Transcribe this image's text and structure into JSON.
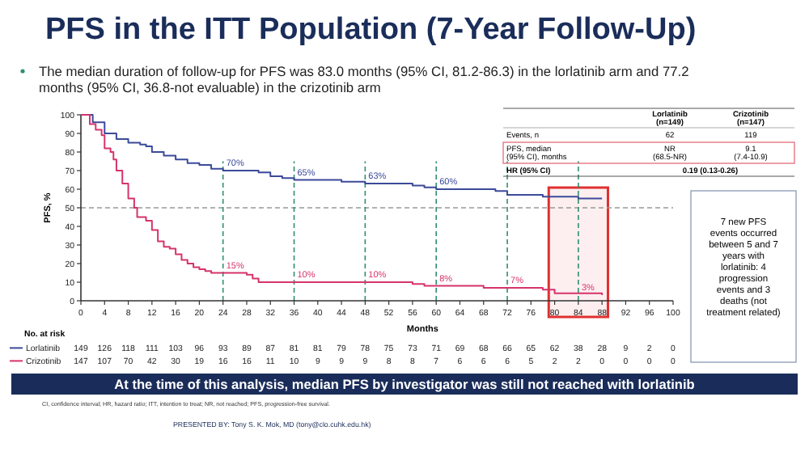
{
  "chart_data": [
    {
      "type": "step",
      "title": "PFS in the ITT Population (7-Year Follow-Up)",
      "subtitle": "The median duration of follow-up for PFS was 83.0 months (95% CI, 81.2-86.3) in the lorlatinib arm and 77.2 months (95% CI, 36.8-not evaluable) in the crizotinib arm",
      "xlabel": "Months",
      "ylabel": "PFS, %",
      "xlim": [
        0,
        100
      ],
      "xticks": [
        0,
        4,
        8,
        12,
        16,
        20,
        24,
        28,
        32,
        36,
        40,
        44,
        48,
        52,
        56,
        60,
        64,
        68,
        72,
        76,
        80,
        84,
        88,
        92,
        96,
        100
      ],
      "ylim": [
        0,
        100
      ],
      "yticks": [
        0,
        10,
        20,
        30,
        40,
        50,
        60,
        70,
        80,
        90,
        100
      ],
      "legend": "bottom",
      "series": [
        {
          "name": "Lorlatinib",
          "color": "#3b4a9a",
          "x": [
            0,
            2,
            4,
            6,
            8,
            10,
            11,
            12,
            14,
            16,
            18,
            20,
            22,
            24,
            28,
            30,
            32,
            34,
            36,
            40,
            44,
            48,
            52,
            56,
            58,
            60,
            66,
            70,
            72,
            78,
            84,
            88
          ],
          "values": [
            100,
            96,
            90,
            87,
            85,
            84,
            83,
            80,
            78,
            76,
            74,
            73,
            71,
            70,
            70,
            69,
            67,
            66,
            65,
            65,
            64,
            63,
            63,
            62,
            61,
            60,
            60,
            59,
            57,
            56,
            55,
            55
          ]
        },
        {
          "name": "Crizotinib",
          "color": "#d6336c",
          "x": [
            0,
            1.5,
            2.5,
            3.5,
            4,
            5,
            5.5,
            6,
            7,
            8,
            9,
            9.5,
            11,
            12,
            13,
            14,
            15,
            16,
            17,
            18,
            19,
            20,
            21,
            22,
            24,
            28,
            29,
            30,
            44,
            48,
            56,
            58,
            60,
            68,
            72,
            78,
            80,
            88
          ],
          "values": [
            100,
            95,
            92,
            89,
            82,
            80,
            76,
            70,
            63,
            55,
            50,
            45,
            43,
            38,
            32,
            29,
            28,
            25,
            22,
            20,
            18,
            17,
            16,
            15,
            15,
            14,
            12,
            10,
            10,
            10,
            9,
            8,
            8,
            7,
            7,
            6,
            4,
            3
          ]
        }
      ],
      "ref_lines": [
        {
          "axis": "y",
          "value": 50,
          "color": "#999999",
          "line_style": "dashed"
        },
        {
          "axis": "x",
          "value": 24,
          "color": "#2f8f6f",
          "line_style": "dashed"
        },
        {
          "axis": "x",
          "value": 36,
          "color": "#2f8f6f",
          "line_style": "dashed"
        },
        {
          "axis": "x",
          "value": 48,
          "color": "#2f8f6f",
          "line_style": "dashed"
        },
        {
          "axis": "x",
          "value": 60,
          "color": "#2f8f6f",
          "line_style": "dashed"
        },
        {
          "axis": "x",
          "value": 72,
          "color": "#2f8f6f",
          "line_style": "dashed"
        },
        {
          "axis": "x",
          "value": 84,
          "color": "#2f8f6f",
          "line_style": "dashed"
        }
      ],
      "bands": [
        {
          "axis": "x",
          "from": 79,
          "to": 89,
          "color": "#e03030"
        }
      ],
      "annotations": [
        {
          "text": "70%",
          "x": 24,
          "y": 70
        },
        {
          "text": "65%",
          "x": 36,
          "y": 65
        },
        {
          "text": "63%",
          "x": 48,
          "y": 63
        },
        {
          "text": "60%",
          "x": 60,
          "y": 60
        },
        {
          "text": "15%",
          "x": 24,
          "y": 15
        },
        {
          "text": "10%",
          "x": 36,
          "y": 10
        },
        {
          "text": "10%",
          "x": 48,
          "y": 10
        },
        {
          "text": "8%",
          "x": 60,
          "y": 8
        },
        {
          "text": "7%",
          "x": 72,
          "y": 7
        },
        {
          "text": "3%",
          "x": 84,
          "y": 3
        },
        "At the time of this analysis, median PFS by investigator was still not reached with lorlatinib",
        "CI, confidence interval; HR, hazard ratio; ITT, intention to treat; NR, not reached; PFS, progression-free survival.",
        "PRESENTED BY: Tony S. K. Mok, MD (tony@clo.cuhk.edu.hk)"
      ]
    },
    {
      "type": "other",
      "annotations": [
        "No. at risk",
        "149",
        "126",
        "118",
        "111",
        "103",
        "96",
        "93",
        "89",
        "87",
        "81",
        "81",
        "79",
        "78",
        "75",
        "73",
        "71",
        "69",
        "68",
        "66",
        "65",
        "62",
        "38",
        "28",
        "9",
        "2",
        "0",
        "147",
        "107",
        "70",
        "42",
        "30",
        "19",
        "16",
        "16",
        "11",
        "10",
        "9",
        "9",
        "9",
        "8",
        "8",
        "7",
        "6",
        "6",
        "6",
        "5",
        "2",
        "2",
        "0",
        "0",
        "0",
        "0"
      ]
    },
    {
      "type": "other",
      "annotations": [
        "Lorlatinib\n(n=149)",
        "Crizotinib\n(n=147)",
        "Events, n",
        "62",
        "119",
        "PFS, median\n(95% CI), months",
        "NR\n(68.5-NR)",
        "9.1\n(7.4-10.9)",
        "HR (95% CI)",
        "0.19 (0.13-0.26)",
        "7 new PFS\nevents occurred\nbetween 5 and 7\nyears with\nlorlatinib: 4\nprogression\nevents and 3\ndeaths (not\ntreatment related)"
      ]
    }
  ]
}
